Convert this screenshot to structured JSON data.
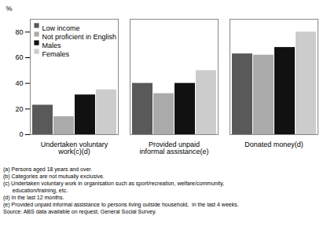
{
  "chart_data": {
    "type": "bar",
    "ylabel": "%",
    "categories": [
      "Undertaken voluntary work(c)(d)",
      "Provided unpaid\ninformal assistance(e)",
      "Donated money(d)"
    ],
    "series": [
      {
        "name": "Low income",
        "color": "#595959",
        "values": [
          23,
          40,
          63
        ]
      },
      {
        "name": "Not proficient in English",
        "color": "#aaaaaa",
        "values": [
          14,
          32,
          62
        ]
      },
      {
        "name": "Males",
        "color": "#111111",
        "values": [
          31,
          40,
          68
        ]
      },
      {
        "name": "Females",
        "color": "#cccccc",
        "values": [
          35,
          50,
          80
        ]
      }
    ],
    "ylim": [
      0,
      90
    ],
    "yticks": [
      0,
      20,
      40,
      60,
      80
    ],
    "grid": false,
    "legend": "upper left",
    "footnotes": [
      "(a) Persons aged 18 years and over.",
      "(b) Categories are not mutually exclusive.",
      "(c) Undertaken voluntary work in organisation such as sport/recreation, welfare/community,",
      "      education/training, etc.",
      "(d) In the last 12 months.",
      "(e) Provided unpaid informal assistance to persons living outside household,  in the last 4 weeks.",
      "Source: ABS data available on request, General Social Survey."
    ]
  }
}
